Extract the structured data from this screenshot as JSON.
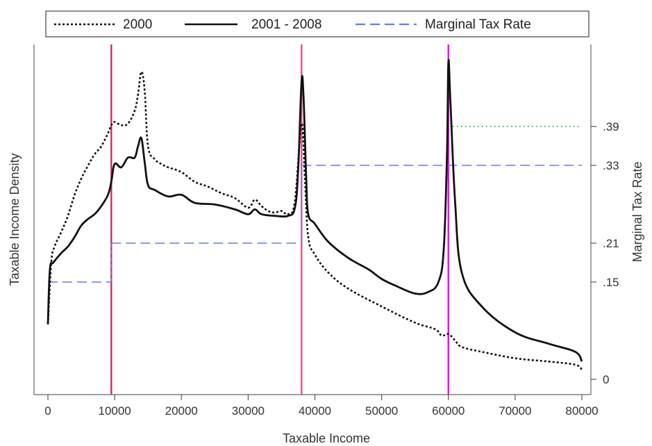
{
  "chart_data": {
    "type": "line",
    "title": "",
    "xlabel": "Taxable Income",
    "ylabel_left": "Taxable Income Density",
    "ylabel_right": "Marginal Tax Rate",
    "xlim": [
      0,
      80000
    ],
    "x_ticks": [
      0,
      10000,
      20000,
      30000,
      40000,
      50000,
      60000,
      70000,
      80000
    ],
    "y_right_ticks": [
      0,
      0.15,
      0.21,
      0.33,
      0.39
    ],
    "y_right_tick_labels": [
      "0",
      ".15",
      ".21",
      ".33",
      ".39"
    ],
    "y_right_lim": [
      0,
      0.44
    ],
    "left_axis_values_shown": false,
    "legend": {
      "placement": "top",
      "entries": [
        "2000",
        "2001 - 2008",
        "Marginal Tax Rate"
      ]
    },
    "vertical_lines": [
      {
        "x": 9500,
        "color": "#c0305a"
      },
      {
        "x": 38000,
        "color": "#e0508a"
      },
      {
        "x": 60000,
        "color": "#ee00ee"
      }
    ],
    "series": [
      {
        "name": "2000",
        "style": "dotted",
        "color": "#111111",
        "x": [
          0,
          500,
          1000,
          2000,
          3000,
          4000,
          5000,
          6000,
          7000,
          8000,
          9000,
          9500,
          10000,
          11000,
          12000,
          13000,
          13500,
          14000,
          14500,
          15000,
          16000,
          17000,
          18000,
          20000,
          22000,
          24000,
          26000,
          28000,
          30000,
          31000,
          32000,
          33000,
          34000,
          35000,
          36000,
          37000,
          38000,
          38500,
          39000,
          40000,
          42000,
          45000,
          50000,
          55000,
          58000,
          59000,
          60000,
          61000,
          62000,
          65000,
          70000,
          75000,
          79000,
          80000
        ],
        "y": [
          0.17,
          0.36,
          0.41,
          0.455,
          0.505,
          0.57,
          0.62,
          0.66,
          0.695,
          0.72,
          0.76,
          0.785,
          0.795,
          0.785,
          0.79,
          0.83,
          0.88,
          0.95,
          0.89,
          0.72,
          0.68,
          0.665,
          0.655,
          0.64,
          0.61,
          0.595,
          0.575,
          0.56,
          0.53,
          0.555,
          0.535,
          0.52,
          0.515,
          0.52,
          0.51,
          0.55,
          0.79,
          0.62,
          0.44,
          0.385,
          0.33,
          0.28,
          0.225,
          0.175,
          0.155,
          0.135,
          0.14,
          0.12,
          0.1,
          0.085,
          0.065,
          0.055,
          0.045,
          0.03
        ]
      },
      {
        "name": "2001 - 2008",
        "style": "solid",
        "color": "#111111",
        "x": [
          0,
          300,
          800,
          2000,
          3000,
          4000,
          5000,
          6000,
          7000,
          8000,
          9000,
          9500,
          10000,
          11000,
          12000,
          13000,
          13500,
          14000,
          14500,
          15000,
          16000,
          18000,
          20000,
          22000,
          25000,
          28000,
          30000,
          31000,
          32000,
          34000,
          36000,
          37000,
          37500,
          38000,
          38300,
          38700,
          39000,
          40000,
          42000,
          45000,
          48000,
          50000,
          52000,
          55000,
          57000,
          58500,
          59300,
          59800,
          60000,
          60300,
          61000,
          62000,
          65000,
          70000,
          75000,
          79000,
          80000
        ],
        "y": [
          0.17,
          0.34,
          0.36,
          0.39,
          0.41,
          0.44,
          0.475,
          0.495,
          0.51,
          0.535,
          0.57,
          0.61,
          0.665,
          0.655,
          0.685,
          0.685,
          0.72,
          0.745,
          0.67,
          0.6,
          0.585,
          0.565,
          0.57,
          0.545,
          0.54,
          0.525,
          0.51,
          0.525,
          0.51,
          0.505,
          0.505,
          0.53,
          0.65,
          0.92,
          0.87,
          0.62,
          0.51,
          0.48,
          0.425,
          0.375,
          0.34,
          0.31,
          0.29,
          0.265,
          0.27,
          0.3,
          0.4,
          0.7,
          0.98,
          0.86,
          0.55,
          0.33,
          0.225,
          0.145,
          0.11,
          0.085,
          0.055
        ]
      },
      {
        "name": "Marginal Tax Rate",
        "style": "dashed",
        "color": "#6a78e8",
        "segments": [
          {
            "x": [
              0,
              9500
            ],
            "y": 0.15
          },
          {
            "x": [
              9500,
              38000
            ],
            "y": 0.21
          },
          {
            "x": [
              38000,
              80000
            ],
            "y": 0.33
          },
          {
            "x": [
              60000,
              80000
            ],
            "y": 0.39,
            "style": "dotted",
            "color": "#3ca84a"
          }
        ]
      }
    ]
  }
}
